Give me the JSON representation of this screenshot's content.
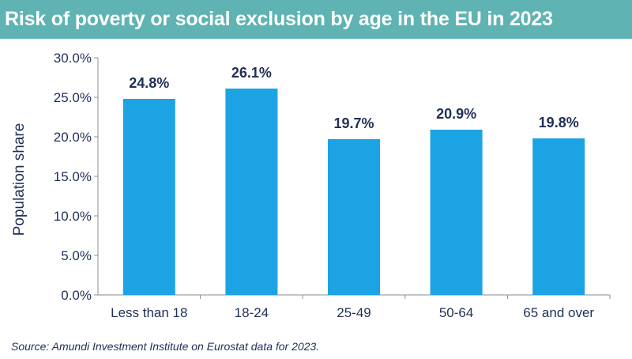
{
  "title": "Risk of poverty or social exclusion by age in the EU in 2023",
  "source": "Source: Amundi Investment Institute on Eurostat data for 2023.",
  "colors": {
    "bar": "#1ba3e3",
    "title_bg": "#5fb3b3",
    "text": "#1f2f56",
    "axis": "#8a8f9a"
  },
  "chart_data": {
    "type": "bar",
    "title": "Risk of poverty or social exclusion by age in the EU in 2023",
    "xlabel": "",
    "ylabel": "Population share",
    "categories": [
      "Less than 18",
      "18-24",
      "25-49",
      "50-64",
      "65 and over"
    ],
    "values": [
      24.8,
      26.1,
      19.7,
      20.9,
      19.8
    ],
    "value_labels": [
      "24.8%",
      "26.1%",
      "19.7%",
      "20.9%",
      "19.8%"
    ],
    "ylim": [
      0,
      30
    ],
    "yticks": [
      0,
      5,
      10,
      15,
      20,
      25,
      30
    ],
    "ytick_labels": [
      "0.0%",
      "5.0%",
      "10.0%",
      "15.0%",
      "20.0%",
      "25.0%",
      "30.0%"
    ],
    "grid": false,
    "legend": "none"
  }
}
